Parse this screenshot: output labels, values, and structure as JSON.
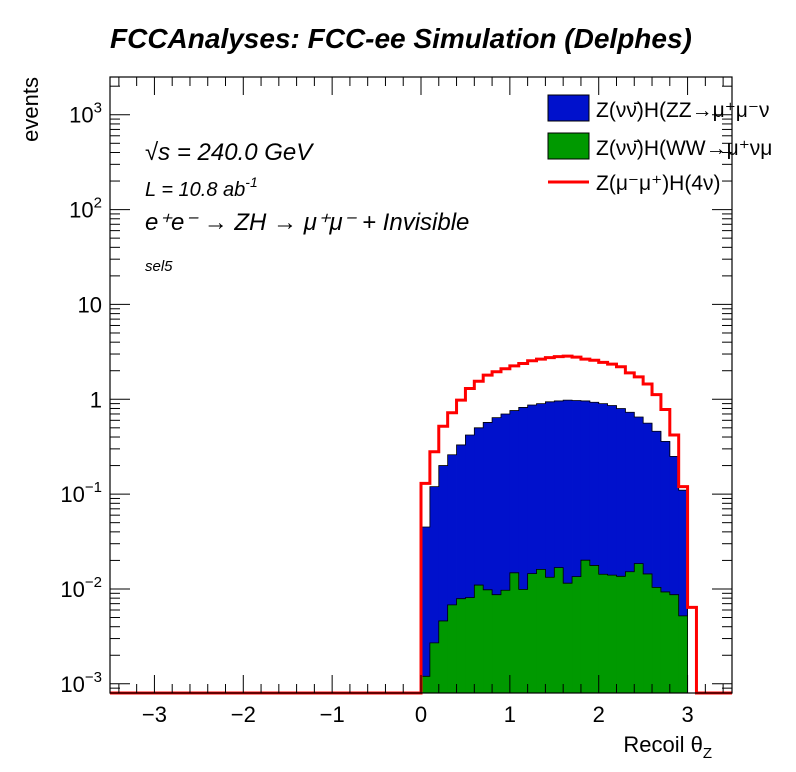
{
  "header": {
    "title": "FCCAnalyses: FCC-ee Simulation (Delphes)"
  },
  "annotations": {
    "energy": "√s = 240.0 GeV",
    "lumi_prefix": "L = 10.8 ab",
    "lumi_exp": "-1",
    "process": "e⁺e⁻ → ZH → μ⁺μ⁻ + Invisible",
    "selection": "sel5"
  },
  "chart_data": {
    "type": "bar",
    "histogram": true,
    "stacked_fill_series": [
      "Z(νν̄)H(ZZ→μ⁺μ⁻ν⁺ν⁻)",
      "Z(νν̄)H(WW→μ⁺νμ⁻ν)"
    ],
    "ylabel": "events",
    "xlabel": "Recoil θ_Z",
    "xlabel_main": "Recoil θ",
    "xlabel_sub": "Z",
    "xlim": [
      -3.5,
      3.5
    ],
    "ylim": [
      0.0008,
      2500
    ],
    "yscale": "log",
    "x_ticks": [
      "−3",
      "−2",
      "−1",
      "0",
      "1",
      "2",
      "3"
    ],
    "x_tick_values": [
      -3,
      -2,
      -1,
      0,
      1,
      2,
      3
    ],
    "y_ticks": [
      {
        "value": 0.001,
        "base": "10",
        "exp": "−3"
      },
      {
        "value": 0.01,
        "base": "10",
        "exp": "−2"
      },
      {
        "value": 0.1,
        "base": "10",
        "exp": "−1"
      },
      {
        "value": 1,
        "base": "1",
        "exp": ""
      },
      {
        "value": 10,
        "base": "10",
        "exp": ""
      },
      {
        "value": 100,
        "base": "10",
        "exp": "2"
      },
      {
        "value": 1000,
        "base": "10",
        "exp": "3"
      }
    ],
    "bin_edges": [
      0.0,
      0.1,
      0.2,
      0.3,
      0.4,
      0.5,
      0.6,
      0.7,
      0.8,
      0.9,
      1.0,
      1.1,
      1.2,
      1.3,
      1.4,
      1.5,
      1.6,
      1.7,
      1.8,
      1.9,
      2.0,
      2.1,
      2.2,
      2.3,
      2.4,
      2.5,
      2.6,
      2.7,
      2.8,
      2.9,
      3.0,
      3.1,
      3.2
    ],
    "legend_position": "top-right",
    "series": [
      {
        "name": "Z(νν̄)H(ZZ→μ⁺μ⁻ν⁺ν⁻)",
        "legend_label": "Z(νν̄)H(ZZ→μ⁺μ⁻ν",
        "style": "fill",
        "color": "#0011cc",
        "values": [
          0.045,
          0.12,
          0.2,
          0.26,
          0.33,
          0.42,
          0.5,
          0.57,
          0.64,
          0.7,
          0.76,
          0.82,
          0.87,
          0.9,
          0.94,
          0.96,
          0.98,
          0.97,
          0.96,
          0.93,
          0.9,
          0.86,
          0.8,
          0.73,
          0.65,
          0.56,
          0.46,
          0.36,
          0.25,
          0.11,
          0.0,
          0.0
        ]
      },
      {
        "name": "Z(νν̄)H(WW→μ⁺νμ⁻ν)",
        "legend_label": "Z(νν̄)H(WW→μ⁺νμ",
        "style": "fill",
        "color": "#009900",
        "values": [
          0.0012,
          0.0027,
          0.0046,
          0.0068,
          0.0079,
          0.0081,
          0.011,
          0.0098,
          0.0087,
          0.0097,
          0.0148,
          0.0099,
          0.0145,
          0.0161,
          0.0133,
          0.0168,
          0.0115,
          0.0135,
          0.0201,
          0.0177,
          0.0143,
          0.014,
          0.0136,
          0.0152,
          0.0185,
          0.0144,
          0.0104,
          0.0093,
          0.0087,
          0.0052,
          0.0,
          0.0
        ]
      },
      {
        "name": "Z(μ⁻μ⁺)H(4ν)",
        "legend_label": "Z(μ⁻μ⁺)H(4ν)",
        "style": "line",
        "color": "#ff0000",
        "values": [
          0.13,
          0.28,
          0.52,
          0.72,
          0.98,
          1.3,
          1.55,
          1.8,
          1.95,
          2.1,
          2.25,
          2.38,
          2.55,
          2.65,
          2.75,
          2.82,
          2.85,
          2.78,
          2.65,
          2.58,
          2.45,
          2.35,
          2.2,
          1.9,
          1.72,
          1.45,
          1.12,
          0.78,
          0.42,
          0.12,
          0.0064,
          0.0
        ]
      }
    ],
    "zero_line_value": 0.0008
  }
}
